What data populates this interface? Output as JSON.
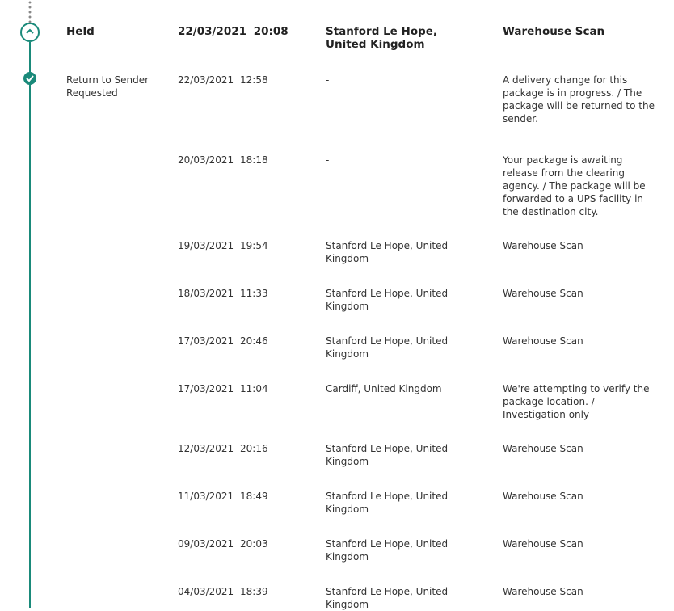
{
  "colors": {
    "accent": "#1a8a7a"
  },
  "header": {
    "status": "Held",
    "date": "22/03/2021",
    "time": "20:08",
    "location": "Stanford Le Hope, United Kingdom",
    "activity": "Warehouse Scan",
    "icon": "chevron-up-icon"
  },
  "events": [
    {
      "status": "Return to Sender Requested",
      "date": "22/03/2021",
      "time": "12:58",
      "location": "-",
      "activity": "A delivery change for this package is in progress. / The package will be returned to the sender."
    },
    {
      "status": "",
      "date": "20/03/2021",
      "time": "18:18",
      "location": "-",
      "activity": "Your package is awaiting release from the clearing agency. / The package will be forwarded to a UPS facility in the destination city."
    },
    {
      "status": "",
      "date": "19/03/2021",
      "time": "19:54",
      "location": "Stanford Le Hope, United Kingdom",
      "activity": "Warehouse Scan"
    },
    {
      "status": "",
      "date": "18/03/2021",
      "time": "11:33",
      "location": "Stanford Le Hope, United Kingdom",
      "activity": "Warehouse Scan"
    },
    {
      "status": "",
      "date": "17/03/2021",
      "time": "20:46",
      "location": "Stanford Le Hope, United Kingdom",
      "activity": "Warehouse Scan"
    },
    {
      "status": "",
      "date": "17/03/2021",
      "time": "11:04",
      "location": "Cardiff, United Kingdom",
      "activity": "We're attempting to verify the package location. / Investigation only"
    },
    {
      "status": "",
      "date": "12/03/2021",
      "time": "20:16",
      "location": "Stanford Le Hope, United Kingdom",
      "activity": "Warehouse Scan"
    },
    {
      "status": "",
      "date": "11/03/2021",
      "time": "18:49",
      "location": "Stanford Le Hope, United Kingdom",
      "activity": "Warehouse Scan"
    },
    {
      "status": "",
      "date": "09/03/2021",
      "time": "20:03",
      "location": "Stanford Le Hope, United Kingdom",
      "activity": "Warehouse Scan"
    },
    {
      "status": "",
      "date": "04/03/2021",
      "time": "18:39",
      "location": "Stanford Le Hope, United Kingdom",
      "activity": "Warehouse Scan"
    }
  ]
}
